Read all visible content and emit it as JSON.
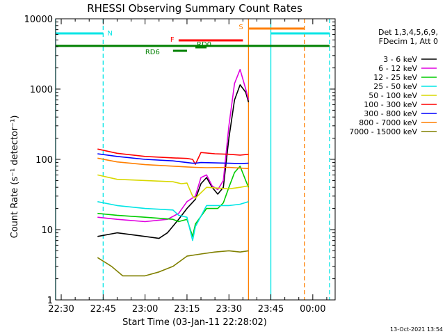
{
  "chart_data": {
    "type": "line",
    "title": "RHESSI Observing Summary Count Rates",
    "xlabel": "Start Time (03-Jan-11 22:28:02)",
    "ylabel": "Count Rate (s⁻¹ detector⁻¹)",
    "x_unit": "minutes",
    "xlim": [
      "22:28",
      "00:08"
    ],
    "ylim": [
      1,
      10000
    ],
    "yscale": "log",
    "x_ticks": [
      "22:30",
      "22:45",
      "23:00",
      "23:15",
      "23:30",
      "23:45",
      "00:00"
    ],
    "y_ticks": [
      "1",
      "10",
      "100",
      "1000",
      "10000"
    ],
    "legend": {
      "header": [
        "Det 1,3,4,5,6,9,",
        "FDecim 1, Att 0"
      ],
      "placement": "right"
    },
    "footer": "13-Oct-2021 13:54",
    "flags": [
      {
        "label": "N",
        "color": "#00e5e5",
        "segments": [
          [
            "22:28",
            "22:45"
          ],
          [
            "23:45",
            "00:06"
          ]
        ]
      },
      {
        "label": "S",
        "color": "#ff7f00",
        "segments": [
          [
            "23:37",
            "23:57"
          ]
        ]
      },
      {
        "label": "F",
        "color": "#ff0000",
        "segments": [
          [
            "23:12",
            "23:35"
          ]
        ]
      },
      {
        "label": "RD0",
        "color": "#008000",
        "segments": [
          [
            "23:18",
            "23:22"
          ]
        ]
      },
      {
        "label": "RD6",
        "color": "#008000",
        "segments": [
          [
            "23:10",
            "23:15"
          ]
        ]
      },
      {
        "label": "",
        "color": "#008000",
        "segments": [
          [
            "22:28",
            "00:06"
          ]
        ]
      }
    ],
    "boundaries": [
      {
        "time": "22:28",
        "color": "#00e5e5",
        "style": "solid"
      },
      {
        "time": "22:45",
        "color": "#00e5e5",
        "style": "dashed"
      },
      {
        "time": "23:37",
        "color": "#ff7f00",
        "style": "solid"
      },
      {
        "time": "23:45",
        "color": "#00e5e5",
        "style": "solid"
      },
      {
        "time": "23:57",
        "color": "#ff7f00",
        "style": "dashed"
      },
      {
        "time": "00:06",
        "color": "#00e5e5",
        "style": "dashed"
      }
    ],
    "series": [
      {
        "name": "3 - 6 keV",
        "color": "#000000",
        "points": [
          [
            "22:43",
            8
          ],
          [
            "22:50",
            9
          ],
          [
            "23:00",
            8
          ],
          [
            "23:05",
            7.5
          ],
          [
            "23:08",
            9
          ],
          [
            "23:12",
            14
          ],
          [
            "23:15",
            20
          ],
          [
            "23:18",
            27
          ],
          [
            "23:20",
            45
          ],
          [
            "23:22",
            55
          ],
          [
            "23:24",
            40
          ],
          [
            "23:26",
            32
          ],
          [
            "23:28",
            40
          ],
          [
            "23:30",
            200
          ],
          [
            "23:32",
            700
          ],
          [
            "23:34",
            1150
          ],
          [
            "23:36",
            900
          ],
          [
            "23:37",
            650
          ]
        ]
      },
      {
        "name": "6 - 12 keV",
        "color": "#e000e0",
        "points": [
          [
            "22:43",
            15
          ],
          [
            "22:50",
            14
          ],
          [
            "23:00",
            13
          ],
          [
            "23:08",
            14
          ],
          [
            "23:12",
            17
          ],
          [
            "23:15",
            25
          ],
          [
            "23:18",
            30
          ],
          [
            "23:20",
            55
          ],
          [
            "23:22",
            60
          ],
          [
            "23:24",
            42
          ],
          [
            "23:26",
            37
          ],
          [
            "23:28",
            50
          ],
          [
            "23:30",
            300
          ],
          [
            "23:32",
            1200
          ],
          [
            "23:34",
            1900
          ],
          [
            "23:36",
            1000
          ],
          [
            "23:37",
            700
          ]
        ]
      },
      {
        "name": "12 - 25 keV",
        "color": "#00cc00",
        "points": [
          [
            "22:43",
            17
          ],
          [
            "22:50",
            16
          ],
          [
            "23:00",
            15
          ],
          [
            "23:10",
            14
          ],
          [
            "23:12",
            13
          ],
          [
            "23:15",
            14
          ],
          [
            "23:17",
            8
          ],
          [
            "23:18",
            12
          ],
          [
            "23:22",
            20
          ],
          [
            "23:26",
            20
          ],
          [
            "23:28",
            24
          ],
          [
            "23:30",
            40
          ],
          [
            "23:32",
            65
          ],
          [
            "23:34",
            80
          ],
          [
            "23:36",
            50
          ],
          [
            "23:37",
            40
          ]
        ]
      },
      {
        "name": "25 - 50 keV",
        "color": "#00e5e5",
        "points": [
          [
            "22:43",
            25
          ],
          [
            "22:50",
            22
          ],
          [
            "23:00",
            20
          ],
          [
            "23:10",
            19
          ],
          [
            "23:12",
            16
          ],
          [
            "23:15",
            15
          ],
          [
            "23:17",
            7
          ],
          [
            "23:18",
            11
          ],
          [
            "23:22",
            22
          ],
          [
            "23:26",
            22
          ],
          [
            "23:30",
            22
          ],
          [
            "23:34",
            23
          ],
          [
            "23:37",
            25
          ]
        ]
      },
      {
        "name": "50 - 100 keV",
        "color": "#d8d800",
        "points": [
          [
            "22:43",
            60
          ],
          [
            "22:50",
            52
          ],
          [
            "23:00",
            50
          ],
          [
            "23:10",
            48
          ],
          [
            "23:13",
            45
          ],
          [
            "23:15",
            46
          ],
          [
            "23:17",
            30
          ],
          [
            "23:18",
            28
          ],
          [
            "23:22",
            40
          ],
          [
            "23:26",
            39
          ],
          [
            "23:30",
            38
          ],
          [
            "23:34",
            40
          ],
          [
            "23:37",
            42
          ]
        ]
      },
      {
        "name": "100 - 300 keV",
        "color": "#ff0000",
        "points": [
          [
            "22:43",
            140
          ],
          [
            "22:50",
            122
          ],
          [
            "23:00",
            110
          ],
          [
            "23:10",
            105
          ],
          [
            "23:15",
            103
          ],
          [
            "23:17",
            100
          ],
          [
            "23:18",
            85
          ],
          [
            "23:20",
            125
          ],
          [
            "23:25",
            120
          ],
          [
            "23:30",
            118
          ],
          [
            "23:34",
            115
          ],
          [
            "23:37",
            118
          ]
        ]
      },
      {
        "name": "300 - 800 keV",
        "color": "#0000ff",
        "points": [
          [
            "22:43",
            120
          ],
          [
            "22:50",
            110
          ],
          [
            "23:00",
            100
          ],
          [
            "23:10",
            95
          ],
          [
            "23:15",
            90
          ],
          [
            "23:17",
            88
          ],
          [
            "23:18",
            88
          ],
          [
            "23:20",
            90
          ],
          [
            "23:25",
            89
          ],
          [
            "23:30",
            88
          ],
          [
            "23:34",
            87
          ],
          [
            "23:37",
            88
          ]
        ]
      },
      {
        "name": "800 - 7000 keV",
        "color": "#ff7f00",
        "points": [
          [
            "22:43",
            104
          ],
          [
            "22:50",
            92
          ],
          [
            "23:00",
            84
          ],
          [
            "23:10",
            80
          ],
          [
            "23:15",
            78
          ],
          [
            "23:18",
            77
          ],
          [
            "23:22",
            76
          ],
          [
            "23:30",
            77
          ],
          [
            "23:34",
            75
          ],
          [
            "23:37",
            74
          ]
        ]
      },
      {
        "name": "7000 - 15000 keV",
        "color": "#808000",
        "points": [
          [
            "22:43",
            4
          ],
          [
            "22:48",
            3
          ],
          [
            "22:52",
            2.2
          ],
          [
            "23:00",
            2.2
          ],
          [
            "23:05",
            2.5
          ],
          [
            "23:10",
            3
          ],
          [
            "23:15",
            4.2
          ],
          [
            "23:20",
            4.5
          ],
          [
            "23:25",
            4.8
          ],
          [
            "23:30",
            5
          ],
          [
            "23:34",
            4.8
          ],
          [
            "23:37",
            5
          ]
        ]
      }
    ]
  }
}
